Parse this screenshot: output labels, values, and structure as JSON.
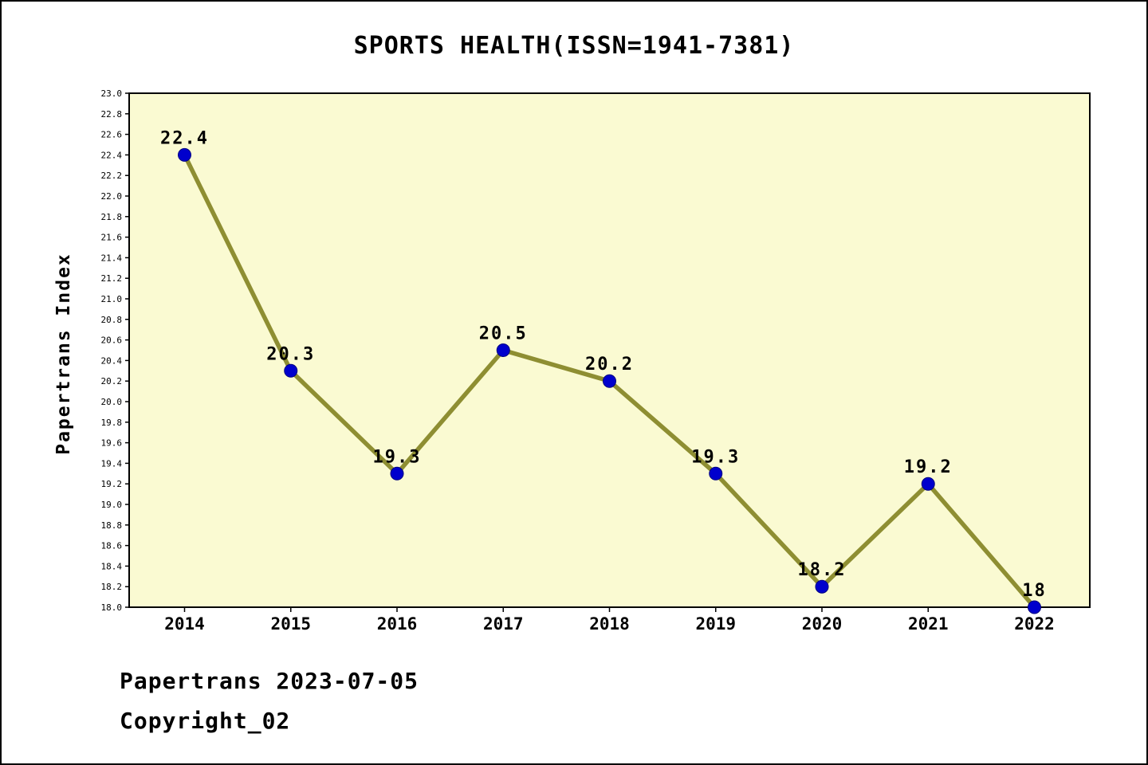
{
  "title": "SPORTS HEALTH(ISSN=1941-7381)",
  "ylabel": "Papertrans Index",
  "footer": {
    "date_line": "Papertrans 2023-07-05",
    "copyright_line": "Copyright_02"
  },
  "chart_data": {
    "type": "line",
    "title": "SPORTS HEALTH(ISSN=1941-7381)",
    "xlabel": "",
    "ylabel": "Papertrans Index",
    "categories": [
      "2014",
      "2015",
      "2016",
      "2017",
      "2018",
      "2019",
      "2020",
      "2021",
      "2022"
    ],
    "values": [
      22.4,
      20.3,
      19.3,
      20.5,
      20.2,
      19.3,
      18.2,
      19.2,
      18.0
    ],
    "point_labels": [
      "22.4",
      "20.3",
      "19.3",
      "20.5",
      "20.2",
      "19.3",
      "18.2",
      "19.2",
      "18"
    ],
    "ylim": [
      18.0,
      23.0
    ],
    "ytick_step": 0.2,
    "grid": false,
    "legend": false,
    "colors": {
      "line": "#8E8E32",
      "marker": "#0000CD",
      "marker_edge": "#000080",
      "plot_background": "#FAFAD2",
      "axis": "#000000"
    }
  }
}
